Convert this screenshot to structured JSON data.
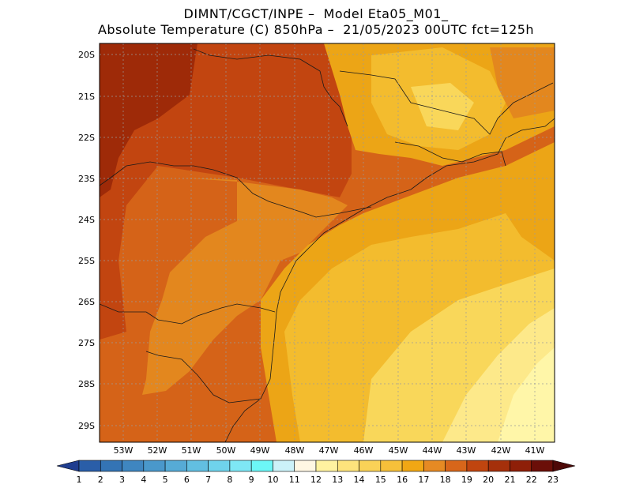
{
  "title": {
    "line1": "DIMNT/CGCT/INPE –  Model Eta05_M01_",
    "line2": "Absolute Temperature (C) 850hPa –  21/05/2023 00UTC fct=125h"
  },
  "map": {
    "latitude_labels": [
      "20S",
      "21S",
      "22S",
      "23S",
      "24S",
      "25S",
      "26S",
      "27S",
      "28S",
      "29S"
    ],
    "longitude_labels": [
      "53W",
      "52W",
      "51W",
      "50W",
      "49W",
      "48W",
      "47W",
      "46W",
      "45W",
      "44W",
      "43W",
      "42W",
      "41W"
    ],
    "lat_range": [
      -29.6,
      -19.8
    ],
    "lon_range": [
      -53.8,
      -40.5
    ]
  },
  "colorbar": {
    "labels": [
      "1",
      "2",
      "3",
      "4",
      "5",
      "6",
      "7",
      "8",
      "9",
      "10",
      "11",
      "12",
      "13",
      "14",
      "15",
      "16",
      "17",
      "18",
      "19",
      "20",
      "21",
      "22",
      "23"
    ],
    "colors": [
      "#1f3d8f",
      "#2a5ea8",
      "#3474b5",
      "#3f86c0",
      "#4a98cb",
      "#56abd6",
      "#62bfe1",
      "#6fd3ec",
      "#7ee7f5",
      "#6cf7f7",
      "#ccf2f9",
      "#fff7e3",
      "#fff2a0",
      "#fde37c",
      "#fad257",
      "#f6c03a",
      "#f1a714",
      "#e68a23",
      "#d8661a",
      "#c0450f",
      "#a5300b",
      "#8e1f08",
      "#6b0f08",
      "#4d0907"
    ]
  },
  "field_colors": {
    "t13": "#fff6a8",
    "t14": "#fde98a",
    "t15": "#f9d75a",
    "t16": "#f3bc2e",
    "t17": "#eca516",
    "t18": "#e3871e",
    "t19": "#d56318",
    "t20": "#c24510",
    "t21": "#9e2a08"
  }
}
